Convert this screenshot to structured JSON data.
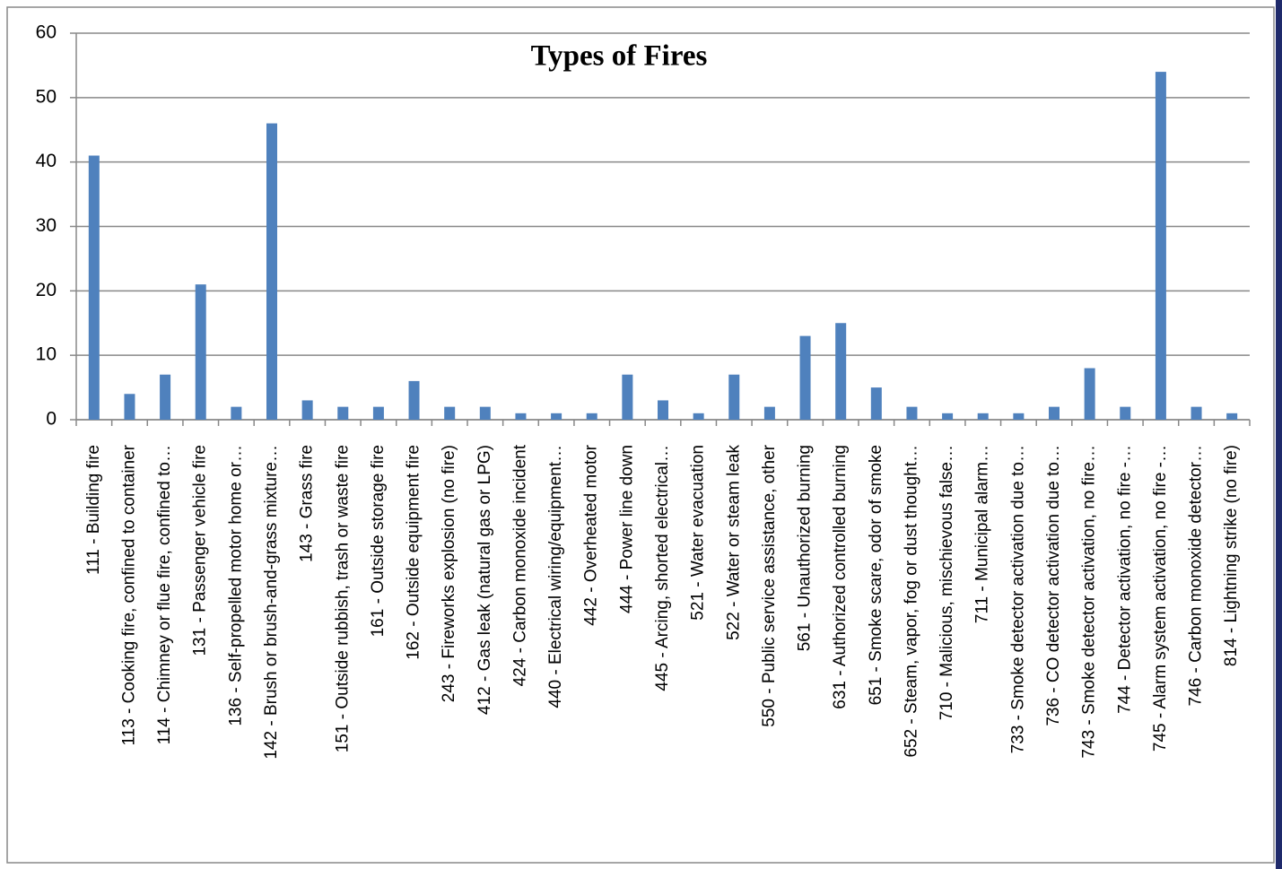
{
  "chart_data": {
    "type": "bar",
    "title": "Types of Fires",
    "categories": [
      "111 - Building fire",
      "113 - Cooking fire, confined to container",
      "114 - Chimney or flue fire, confined to…",
      "131 - Passenger vehicle fire",
      "136 - Self-propelled motor home or…",
      "142 - Brush or brush-and-grass mixture…",
      "143 - Grass fire",
      "151 - Outside rubbish, trash or waste fire",
      "161 - Outside storage fire",
      "162 - Outside equipment fire",
      "243 - Fireworks explosion (no fire)",
      "412 - Gas leak (natural gas or LPG)",
      "424 - Carbon monoxide incident",
      "440 - Electrical wiring/equipment…",
      "442 - Overheated motor",
      "444 - Power line down",
      "445 - Arcing, shorted electrical…",
      "521 - Water evacuation",
      "522 - Water or steam leak",
      "550 - Public service assistance, other",
      "561 - Unauthorized burning",
      "631 - Authorized controlled burning",
      "651 - Smoke scare, odor of smoke",
      "652 - Steam, vapor, fog or dust thought…",
      "710 - Malicious, mischievous false…",
      "711 - Municipal alarm…",
      "733 - Smoke detector activation due to…",
      "736 - CO detector activation due to…",
      "743 - Smoke detector activation, no fire…",
      "744 - Detector activation, no fire -…",
      "745 - Alarm system activation, no fire -…",
      "746 - Carbon monoxide detector…",
      "814 - Lightning strike (no fire)"
    ],
    "values": [
      41,
      4,
      7,
      21,
      2,
      46,
      3,
      2,
      2,
      6,
      2,
      2,
      1,
      1,
      1,
      7,
      3,
      1,
      7,
      2,
      13,
      15,
      5,
      2,
      1,
      1,
      1,
      2,
      8,
      2,
      54,
      2,
      1
    ],
    "color": "#4f81bd",
    "ylim": [
      0,
      60
    ],
    "yticks": [
      0,
      10,
      20,
      30,
      40,
      50,
      60
    ],
    "grid": true
  }
}
